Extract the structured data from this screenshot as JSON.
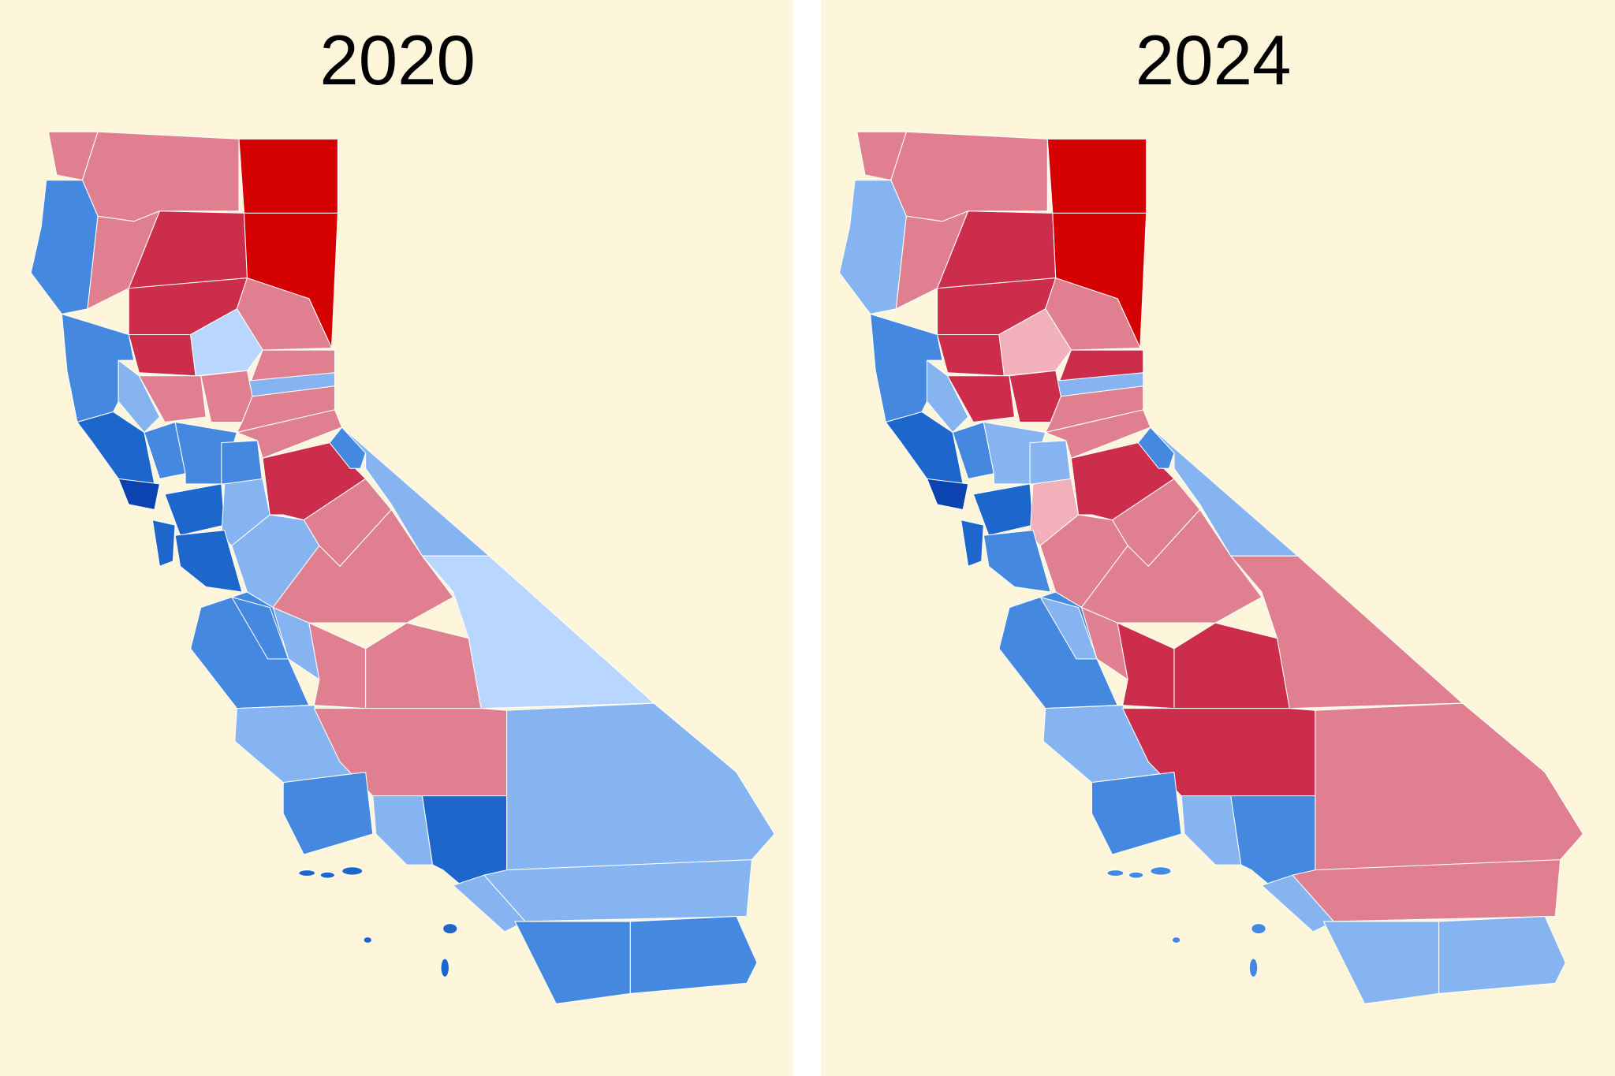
{
  "maps": [
    {
      "title": "2020"
    },
    {
      "title": "2024"
    }
  ]
}
